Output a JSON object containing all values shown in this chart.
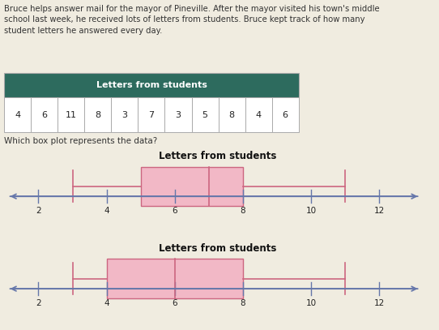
{
  "title_text": "Bruce helps answer mail for the mayor of Pineville. After the mayor visited his town's middle\nschool last week, he received lots of letters from students. Bruce kept track of how many\nstudent letters he answered every day.",
  "table_title": "Letters from students",
  "table_data": [
    4,
    6,
    11,
    8,
    3,
    7,
    3,
    5,
    8,
    4,
    6
  ],
  "question": "Which box plot represents the data?",
  "table_header_color": "#2d6b5e",
  "table_header_text_color": "#ffffff",
  "table_border_color": "#aaaaaa",
  "plot1": {
    "title": "Letters from students",
    "min_val": 3,
    "q1": 5,
    "median": 7,
    "q3": 8,
    "max_val": 11,
    "xlim": [
      1.0,
      13.5
    ],
    "xticks": [
      2,
      4,
      6,
      8,
      10,
      12
    ],
    "box_color": "#f2b8c6",
    "box_edge_color": "#cc6680",
    "whisker_color": "#cc6680",
    "line_color": "#6677aa",
    "border_color": "#88cccc"
  },
  "plot2": {
    "title": "Letters from students",
    "min_val": 3,
    "q1": 4,
    "median": 6,
    "q3": 8,
    "max_val": 11,
    "xlim": [
      1.0,
      13.5
    ],
    "xticks": [
      2,
      4,
      6,
      8,
      10,
      12
    ],
    "box_color": "#f2b8c6",
    "box_edge_color": "#cc6680",
    "whisker_color": "#cc6680",
    "line_color": "#6677aa",
    "border_color": "#88cccc"
  },
  "fig_background": "#f0ece0",
  "fig_width": 5.42,
  "fig_height": 4.07,
  "dpi": 100
}
